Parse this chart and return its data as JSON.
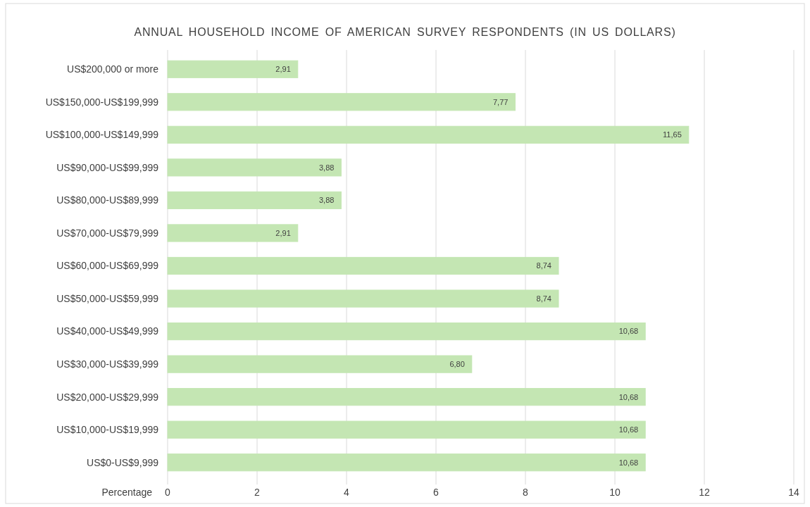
{
  "chart_data": {
    "type": "bar",
    "orientation": "horizontal",
    "title": "ANNUAL HOUSEHOLD INCOME OF AMERICAN SURVEY RESPONDENTS (IN US DOLLARS)",
    "xlabel": "Percentage",
    "categories": [
      "US$200,000 or more",
      "US$150,000-US$199,999",
      "US$100,000-US$149,999",
      "US$90,000-US$99,999",
      "US$80,000-US$89,999",
      "US$70,000-US$79,999",
      "US$60,000-US$69,999",
      "US$50,000-US$59,999",
      "US$40,000-US$49,999",
      "US$30,000-US$39,999",
      "US$20,000-US$29,999",
      "US$10,000-US$19,999",
      "US$0-US$9,999"
    ],
    "values": [
      2.91,
      7.77,
      11.65,
      3.88,
      3.88,
      2.91,
      8.74,
      8.74,
      10.68,
      6.8,
      10.68,
      10.68,
      10.68
    ],
    "value_labels": [
      "2,91",
      "7,77",
      "11,65",
      "3,88",
      "3,88",
      "2,91",
      "8,74",
      "8,74",
      "10,68",
      "6,80",
      "10,68",
      "10,68",
      "10,68"
    ],
    "color": "#c4e6b3",
    "xlim": [
      0,
      14
    ],
    "xticks": [
      0,
      2,
      4,
      6,
      8,
      10,
      12,
      14
    ],
    "grid": "x"
  }
}
